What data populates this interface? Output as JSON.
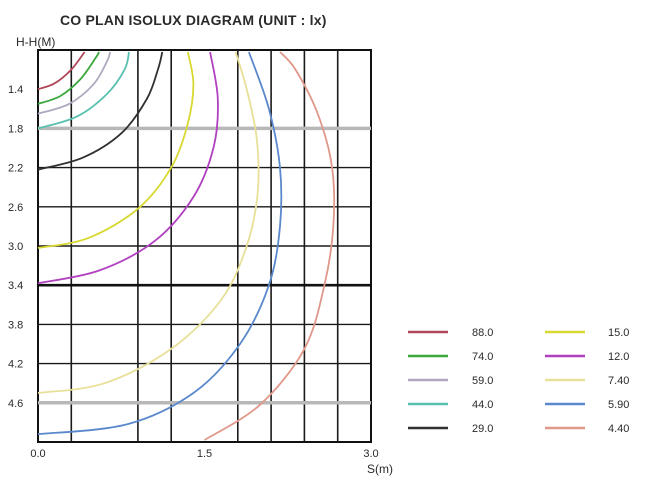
{
  "chart_data": {
    "type": "line",
    "title": "CO PLAN ISOLUX DIAGRAM (UNIT : lx)",
    "xlabel": "S(m)",
    "ylabel": "H-H(M)",
    "xlim": [
      0,
      3.0
    ],
    "ylim": [
      1.0,
      5.0
    ],
    "y_inverted": true,
    "grid": true,
    "x_ticks": [
      "0.0",
      "1.5",
      "3.0"
    ],
    "x_tick_values": [
      0,
      1.5,
      3.0
    ],
    "y_ticks": [
      "1.4",
      "1.8",
      "2.2",
      "2.6",
      "3.0",
      "3.4",
      "3.8",
      "4.2",
      "4.6"
    ],
    "legend_placement": "bottom-right",
    "series": [
      {
        "name": "88.0",
        "color": "#b0485a",
        "points": [
          [
            0.0,
            1.4
          ],
          [
            0.15,
            1.34
          ],
          [
            0.3,
            1.2
          ],
          [
            0.42,
            1.02
          ]
        ]
      },
      {
        "name": "74.0",
        "color": "#3aa83a",
        "points": [
          [
            0.0,
            1.55
          ],
          [
            0.2,
            1.47
          ],
          [
            0.38,
            1.3
          ],
          [
            0.52,
            1.08
          ],
          [
            0.55,
            1.02
          ]
        ]
      },
      {
        "name": "59.0",
        "color": "#b0a8c0",
        "points": [
          [
            0.0,
            1.65
          ],
          [
            0.28,
            1.55
          ],
          [
            0.5,
            1.35
          ],
          [
            0.62,
            1.12
          ],
          [
            0.65,
            1.02
          ]
        ]
      },
      {
        "name": "44.0",
        "color": "#58c0b0",
        "points": [
          [
            0.0,
            1.8
          ],
          [
            0.35,
            1.68
          ],
          [
            0.62,
            1.45
          ],
          [
            0.78,
            1.2
          ],
          [
            0.82,
            1.02
          ]
        ]
      },
      {
        "name": "29.0",
        "color": "#303030",
        "points": [
          [
            0.0,
            2.22
          ],
          [
            0.4,
            2.1
          ],
          [
            0.75,
            1.85
          ],
          [
            0.98,
            1.5
          ],
          [
            1.08,
            1.2
          ],
          [
            1.12,
            1.02
          ]
        ]
      },
      {
        "name": "15.0",
        "color": "#d8d830",
        "points": [
          [
            0.0,
            3.02
          ],
          [
            0.45,
            2.92
          ],
          [
            0.9,
            2.62
          ],
          [
            1.2,
            2.2
          ],
          [
            1.35,
            1.75
          ],
          [
            1.4,
            1.35
          ],
          [
            1.35,
            1.02
          ]
        ]
      },
      {
        "name": "12.0",
        "color": "#b040c0",
        "points": [
          [
            0.0,
            3.38
          ],
          [
            0.55,
            3.25
          ],
          [
            1.05,
            2.95
          ],
          [
            1.4,
            2.5
          ],
          [
            1.58,
            2.0
          ],
          [
            1.62,
            1.5
          ],
          [
            1.55,
            1.02
          ]
        ]
      },
      {
        "name": "7.40",
        "color": "#e8e098",
        "points": [
          [
            0.0,
            4.5
          ],
          [
            0.6,
            4.4
          ],
          [
            1.2,
            4.05
          ],
          [
            1.65,
            3.55
          ],
          [
            1.88,
            3.0
          ],
          [
            1.98,
            2.45
          ],
          [
            1.97,
            1.9
          ],
          [
            1.88,
            1.4
          ],
          [
            1.78,
            1.02
          ]
        ]
      },
      {
        "name": "5.90",
        "color": "#5a88cc",
        "points": [
          [
            0.0,
            4.92
          ],
          [
            0.8,
            4.82
          ],
          [
            1.4,
            4.5
          ],
          [
            1.82,
            4.0
          ],
          [
            2.08,
            3.4
          ],
          [
            2.18,
            2.8
          ],
          [
            2.18,
            2.2
          ],
          [
            2.08,
            1.6
          ],
          [
            1.9,
            1.02
          ]
        ]
      },
      {
        "name": "4.40",
        "color": "#e0988a",
        "points": [
          [
            1.5,
            4.98
          ],
          [
            2.0,
            4.62
          ],
          [
            2.4,
            4.05
          ],
          [
            2.58,
            3.4
          ],
          [
            2.66,
            2.8
          ],
          [
            2.65,
            2.2
          ],
          [
            2.52,
            1.65
          ],
          [
            2.32,
            1.2
          ],
          [
            2.18,
            1.02
          ]
        ]
      }
    ]
  }
}
